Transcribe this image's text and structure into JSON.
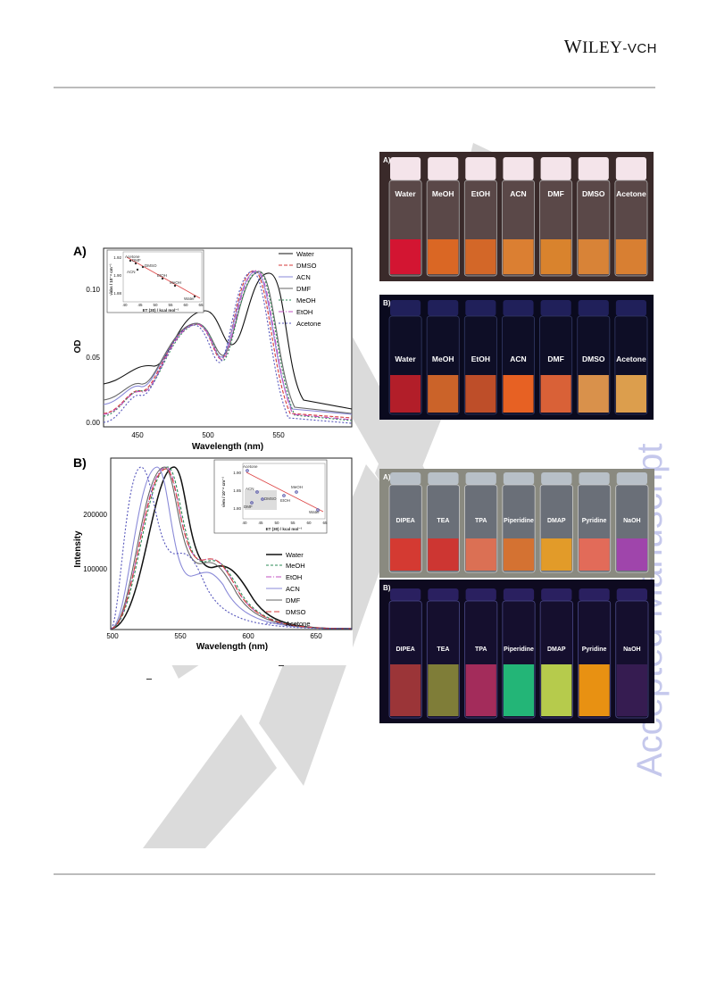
{
  "header": {
    "publisher_a": "W",
    "publisher_b": "ILEY",
    "publisher_c": "-VCH"
  },
  "side_watermark": "Accepted Manuscript",
  "colors": {
    "Water": "#111111",
    "DMSO": "#d43a3a",
    "ACN": "#8a8ad8",
    "DMF": "#666666",
    "MeOH": "#2e8b57",
    "EtOH": "#c050c0",
    "Acetone": "#5555bb"
  },
  "figA": {
    "panel_label": "A)",
    "ylabel": "OD",
    "xlabel": "Wavelength (nm)",
    "yticks": [
      "0.00",
      "0.05",
      "0.10"
    ],
    "xticks": [
      "450",
      "500",
      "550"
    ],
    "legend": [
      "Water",
      "DMSO",
      "ACN",
      "DMF",
      "MeOH",
      "EtOH",
      "Acetone"
    ],
    "inset": {
      "ylabel": "ν̄abs / 10⁻⁴ cm⁻¹",
      "xlabel": "ET (30) / kcal mol⁻¹",
      "yticks": [
        "1.92",
        "1.90",
        "1.88"
      ],
      "xticks": [
        "40",
        "45",
        "50",
        "55",
        "60",
        "65"
      ],
      "labels": [
        "Acetone",
        "DMF",
        "DMSO",
        "ACN",
        "EtOH",
        "MeOH",
        "Water"
      ]
    }
  },
  "figB": {
    "panel_label": "B)",
    "ylabel": "Intensity",
    "xlabel": "Wavelength (nm)",
    "yticks": [
      "100000",
      "200000"
    ],
    "xticks": [
      "500",
      "550",
      "600",
      "650"
    ],
    "legend": [
      "Water",
      "MeOH",
      "EtOH",
      "ACN",
      "DMF",
      "DMSO",
      "Acetone"
    ],
    "inset": {
      "ylabel": "ν̄em / 10⁻⁴ cm⁻¹",
      "xlabel": "ET (30) / kcal mol⁻¹",
      "yticks": [
        "1.90",
        "1.85",
        "1.80"
      ],
      "xticks": [
        "40",
        "45",
        "50",
        "55",
        "60",
        "65"
      ],
      "labels": [
        "Acetone",
        "MeOH",
        "ACN",
        "EtOH",
        "DMSO",
        "DMF",
        "Water"
      ]
    }
  },
  "photo1": {
    "panel_a": "A)",
    "panel_b": "B)",
    "vials": [
      "Water",
      "MeOH",
      "EtOH",
      "ACN",
      "DMF",
      "DMSO",
      "Acetone"
    ],
    "liquid_a": [
      "#e01030",
      "#e86a20",
      "#e06a25",
      "#e98530",
      "#e7892a",
      "#e58a35",
      "#e58530"
    ],
    "liquid_b": [
      "#c4202a",
      "#e06d2a",
      "#d2552a",
      "#ff6a24",
      "#f06a3a",
      "#f0a050",
      "#f3ae52"
    ]
  },
  "photo2": {
    "panel_a": "A)",
    "panel_b": "B)",
    "vials": [
      "DIPEA",
      "TEA",
      "TPA",
      "Piperidine",
      "DMAP",
      "Pyridine",
      "NaOH"
    ],
    "liquid_a": [
      "#e0342a",
      "#d8302a",
      "#e87050",
      "#e0722a",
      "#f0a020",
      "#ef6a55",
      "#a540b0"
    ],
    "liquid_b": [
      "#aa3a3a",
      "#8b8a3a",
      "#b33060",
      "#25c880",
      "#c8e050",
      "#ffa010",
      "#3a1e55"
    ]
  }
}
